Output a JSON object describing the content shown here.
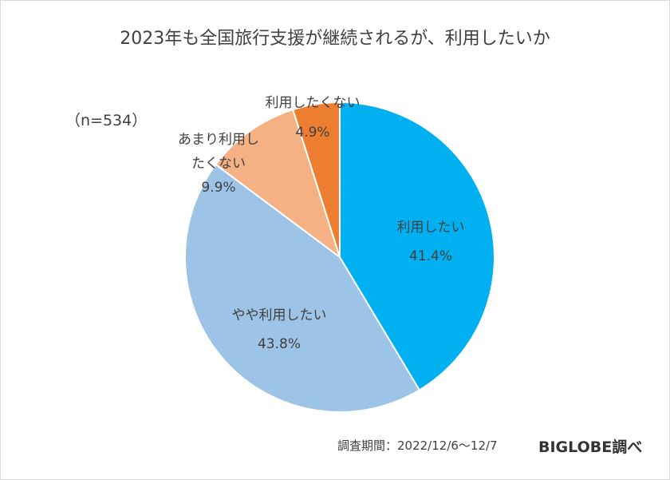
{
  "chart_data": {
    "type": "pie",
    "title": "2023年も全国旅行支援が継続されるが、利用したいか",
    "sample_label": "（n=534）",
    "slices": [
      {
        "label_lines": [
          "利用したい"
        ],
        "value": 41.4,
        "value_label": "41.4%",
        "color": "#00B0F0"
      },
      {
        "label_lines": [
          "やや利用したい"
        ],
        "value": 43.8,
        "value_label": "43.8%",
        "color": "#9DC3E6"
      },
      {
        "label_lines": [
          "あまり利用し",
          "たくない"
        ],
        "value": 9.9,
        "value_label": "9.9%",
        "color": "#F4B183"
      },
      {
        "label_lines": [
          "利用したくない"
        ],
        "value": 4.9,
        "value_label": "4.9%",
        "color": "#ED7D31"
      }
    ]
  },
  "footer": {
    "period": "調査期間：2022/12/6～12/7",
    "brand": "BIGLOBE調べ"
  }
}
